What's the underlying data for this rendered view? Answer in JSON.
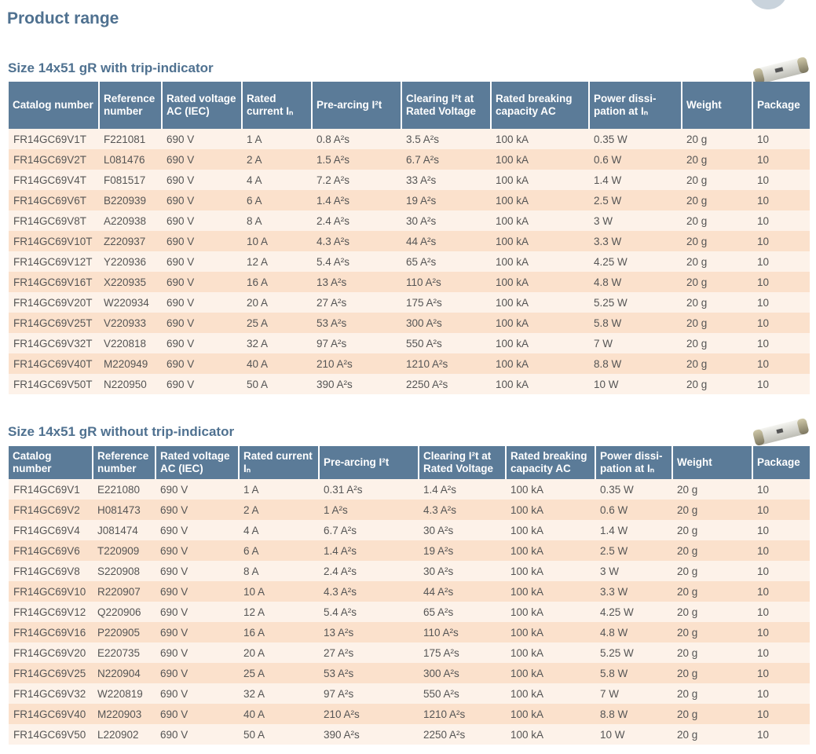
{
  "title": "Product range",
  "sections": [
    {
      "title": "Size 14x51 gR with trip-indicator",
      "header": [
        "Catalog number",
        "Reference number",
        "Rated voltage AC (IEC)",
        "Rated current Iₙ",
        "Pre-arcing I²t",
        "Clearing I²t at Rated Voltage",
        "Rated breaking capacity AC",
        "Power dissi-pation at Iₙ",
        "Weight",
        "Package"
      ],
      "rows": [
        [
          "FR14GC69V1T",
          "F221081",
          "690 V",
          "1 A",
          "0.8 A²s",
          "3.5 A²s",
          "100 kA",
          "0.35 W",
          "20 g",
          "10"
        ],
        [
          "FR14GC69V2T",
          "L081476",
          "690 V",
          "2 A",
          "1.5 A²s",
          "6.7 A²s",
          "100 kA",
          "0.6 W",
          "20 g",
          "10"
        ],
        [
          "FR14GC69V4T",
          "F081517",
          "690 V",
          "4 A",
          "7.2 A²s",
          "33 A²s",
          "100 kA",
          "1.4 W",
          "20 g",
          "10"
        ],
        [
          "FR14GC69V6T",
          "B220939",
          "690 V",
          "6 A",
          "1.4 A²s",
          "19 A²s",
          "100 kA",
          "2.5 W",
          "20 g",
          "10"
        ],
        [
          "FR14GC69V8T",
          "A220938",
          "690 V",
          "8 A",
          "2.4 A²s",
          "30 A²s",
          "100 kA",
          "3 W",
          "20 g",
          "10"
        ],
        [
          "FR14GC69V10T",
          "Z220937",
          "690 V",
          "10 A",
          "4.3 A²s",
          "44 A²s",
          "100 kA",
          "3.3 W",
          "20 g",
          "10"
        ],
        [
          "FR14GC69V12T",
          "Y220936",
          "690 V",
          "12 A",
          "5.4 A²s",
          "65 A²s",
          "100 kA",
          "4.25 W",
          "20 g",
          "10"
        ],
        [
          "FR14GC69V16T",
          "X220935",
          "690 V",
          "16 A",
          "13 A²s",
          "110 A²s",
          "100 kA",
          "4.8 W",
          "20 g",
          "10"
        ],
        [
          "FR14GC69V20T",
          "W220934",
          "690 V",
          "20 A",
          "27 A²s",
          "175 A²s",
          "100 kA",
          "5.25 W",
          "20 g",
          "10"
        ],
        [
          "FR14GC69V25T",
          "V220933",
          "690 V",
          "25 A",
          "53 A²s",
          "300 A²s",
          "100 kA",
          "5.8 W",
          "20 g",
          "10"
        ],
        [
          "FR14GC69V32T",
          "V220818",
          "690 V",
          "32 A",
          "97 A²s",
          "550 A²s",
          "100 kA",
          "7 W",
          "20 g",
          "10"
        ],
        [
          "FR14GC69V40T",
          "M220949",
          "690 V",
          "40 A",
          "210 A²s",
          "1210 A²s",
          "100 kA",
          "8.8 W",
          "20 g",
          "10"
        ],
        [
          "FR14GC69V50T",
          "N220950",
          "690 V",
          "50 A",
          "390 A²s",
          "2250 A²s",
          "100 kA",
          "10 W",
          "20 g",
          "10"
        ]
      ]
    },
    {
      "title": "Size 14x51 gR without trip-indicator",
      "header": [
        "Catalog number",
        "Reference number",
        "Rated voltage AC (IEC)",
        "Rated current Iₙ",
        "Pre-arcing I²t",
        "Clearing I²t at Rated Voltage",
        "Rated breaking capacity AC",
        "Power dissi-pation at Iₙ",
        "Weight",
        "Package"
      ],
      "rows": [
        [
          "FR14GC69V1",
          "E221080",
          "690 V",
          "1 A",
          "0.31 A²s",
          "1.4 A²s",
          "100 kA",
          "0.35 W",
          "20 g",
          "10"
        ],
        [
          "FR14GC69V2",
          "H081473",
          "690 V",
          "2 A",
          "1 A²s",
          "4.3 A²s",
          "100 kA",
          "0.6 W",
          "20 g",
          "10"
        ],
        [
          "FR14GC69V4",
          "J081474",
          "690 V",
          "4 A",
          "6.7 A²s",
          "30 A²s",
          "100 kA",
          "1.4 W",
          "20 g",
          "10"
        ],
        [
          "FR14GC69V6",
          "T220909",
          "690 V",
          "6 A",
          "1.4 A²s",
          "19 A²s",
          "100 kA",
          "2.5 W",
          "20 g",
          "10"
        ],
        [
          "FR14GC69V8",
          "S220908",
          "690 V",
          "8 A",
          "2.4 A²s",
          "30 A²s",
          "100 kA",
          "3 W",
          "20 g",
          "10"
        ],
        [
          "FR14GC69V10",
          "R220907",
          "690 V",
          "10 A",
          "4.3 A²s",
          "44 A²s",
          "100 kA",
          "3.3 W",
          "20 g",
          "10"
        ],
        [
          "FR14GC69V12",
          "Q220906",
          "690 V",
          "12 A",
          "5.4 A²s",
          "65 A²s",
          "100 kA",
          "4.25 W",
          "20 g",
          "10"
        ],
        [
          "FR14GC69V16",
          "P220905",
          "690 V",
          "16 A",
          "13 A²s",
          "110 A²s",
          "100 kA",
          "4.8 W",
          "20 g",
          "10"
        ],
        [
          "FR14GC69V20",
          "E220735",
          "690 V",
          "20 A",
          "27 A²s",
          "175 A²s",
          "100 kA",
          "5.25 W",
          "20 g",
          "10"
        ],
        [
          "FR14GC69V25",
          "N220904",
          "690 V",
          "25 A",
          "53 A²s",
          "300 A²s",
          "100 kA",
          "5.8 W",
          "20 g",
          "10"
        ],
        [
          "FR14GC69V32",
          "W220819",
          "690 V",
          "32 A",
          "97 A²s",
          "550 A²s",
          "100 kA",
          "7 W",
          "20 g",
          "10"
        ],
        [
          "FR14GC69V40",
          "M220903",
          "690 V",
          "40 A",
          "210 A²s",
          "1210 A²s",
          "100 kA",
          "8.8 W",
          "20 g",
          "10"
        ],
        [
          "FR14GC69V50",
          "L220902",
          "690 V",
          "50 A",
          "390 A²s",
          "2250 A²s",
          "100 kA",
          "10 W",
          "20 g",
          "10"
        ]
      ]
    }
  ]
}
